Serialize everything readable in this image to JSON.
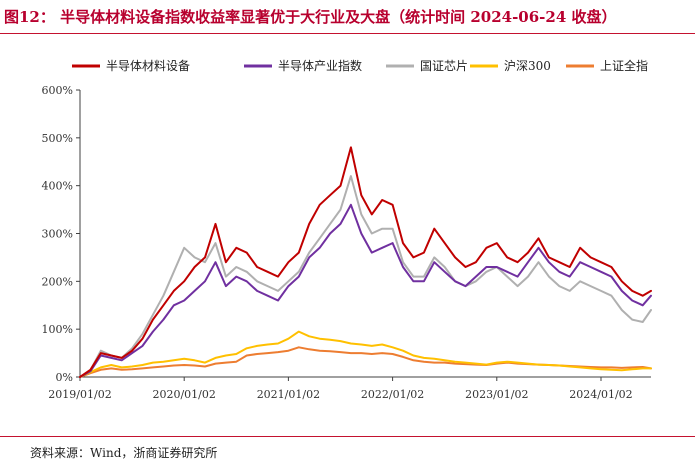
{
  "header": {
    "title": "图12： 半导体材料设备指数收益率显著优于大行业及大盘（统计时间 2024-06-24 收盘）"
  },
  "footer": {
    "source": "资料来源：Wind，浙商证券研究所"
  },
  "chart_data": {
    "type": "line",
    "title": "半导体材料设备指数收益率显著优于大行业及大盘（统计时间 2024-06-24 收盘）",
    "xlabel": "",
    "ylabel": "",
    "y_tick_labels": [
      "0%",
      "100%",
      "200%",
      "300%",
      "400%",
      "500%",
      "600%"
    ],
    "y_tick_values": [
      0,
      100,
      200,
      300,
      400,
      500,
      600
    ],
    "ylim": [
      0,
      600
    ],
    "x_tick_labels": [
      "2019/01/02",
      "2020/01/02",
      "2021/01/02",
      "2022/01/02",
      "2023/01/02",
      "2024/01/02"
    ],
    "x_tick_values": [
      2019.0,
      2020.0,
      2021.0,
      2022.0,
      2023.0,
      2024.0
    ],
    "xlim": [
      2019.0,
      2024.48
    ],
    "grid": false,
    "legend_position": "top",
    "x": [
      2019.0,
      2019.1,
      2019.2,
      2019.3,
      2019.4,
      2019.5,
      2019.6,
      2019.7,
      2019.8,
      2019.9,
      2020.0,
      2020.1,
      2020.2,
      2020.3,
      2020.4,
      2020.5,
      2020.6,
      2020.7,
      2020.8,
      2020.9,
      2021.0,
      2021.1,
      2021.2,
      2021.3,
      2021.4,
      2021.5,
      2021.6,
      2021.7,
      2021.8,
      2021.9,
      2022.0,
      2022.1,
      2022.2,
      2022.3,
      2022.4,
      2022.5,
      2022.6,
      2022.7,
      2022.8,
      2022.9,
      2023.0,
      2023.1,
      2023.2,
      2023.3,
      2023.4,
      2023.5,
      2023.6,
      2023.7,
      2023.8,
      2023.9,
      2024.0,
      2024.1,
      2024.2,
      2024.3,
      2024.4,
      2024.48
    ],
    "series": [
      {
        "name": "半导体材料设备",
        "color": "#c00000",
        "values": [
          0,
          15,
          50,
          45,
          40,
          55,
          80,
          120,
          150,
          180,
          200,
          230,
          250,
          320,
          240,
          270,
          260,
          230,
          220,
          210,
          240,
          260,
          320,
          360,
          380,
          400,
          480,
          380,
          340,
          370,
          360,
          280,
          250,
          260,
          310,
          280,
          250,
          230,
          240,
          270,
          280,
          250,
          240,
          260,
          290,
          250,
          240,
          230,
          270,
          250,
          240,
          230,
          200,
          180,
          170,
          180
        ]
      },
      {
        "name": "半导体产业指数",
        "color": "#7030a0",
        "values": [
          0,
          12,
          45,
          40,
          35,
          50,
          65,
          95,
          120,
          150,
          160,
          180,
          200,
          240,
          190,
          210,
          200,
          180,
          170,
          160,
          190,
          210,
          250,
          270,
          300,
          320,
          360,
          300,
          260,
          270,
          280,
          230,
          200,
          200,
          240,
          220,
          200,
          190,
          210,
          230,
          230,
          220,
          210,
          240,
          270,
          240,
          220,
          210,
          240,
          230,
          220,
          210,
          180,
          160,
          150,
          170
        ]
      },
      {
        "name": "国证芯片",
        "color": "#b0b0b0",
        "values": [
          0,
          14,
          55,
          45,
          40,
          60,
          90,
          130,
          170,
          220,
          270,
          250,
          240,
          280,
          210,
          230,
          220,
          200,
          190,
          180,
          200,
          220,
          260,
          290,
          320,
          350,
          420,
          340,
          300,
          310,
          310,
          240,
          210,
          210,
          250,
          230,
          200,
          190,
          200,
          220,
          230,
          210,
          190,
          210,
          240,
          210,
          190,
          180,
          200,
          190,
          180,
          170,
          140,
          120,
          115,
          140
        ]
      },
      {
        "name": "沪深300",
        "color": "#ffc000",
        "values": [
          0,
          10,
          20,
          25,
          20,
          22,
          25,
          30,
          32,
          35,
          38,
          35,
          30,
          40,
          45,
          48,
          60,
          65,
          68,
          70,
          80,
          95,
          85,
          80,
          78,
          75,
          70,
          68,
          65,
          68,
          62,
          55,
          45,
          40,
          38,
          35,
          32,
          30,
          28,
          26,
          30,
          32,
          30,
          28,
          26,
          25,
          24,
          22,
          20,
          18,
          16,
          15,
          14,
          16,
          18,
          18
        ]
      },
      {
        "name": "上证全指",
        "color": "#ed7d31",
        "values": [
          0,
          8,
          15,
          18,
          15,
          16,
          18,
          20,
          22,
          24,
          25,
          24,
          22,
          28,
          30,
          32,
          45,
          48,
          50,
          52,
          55,
          62,
          58,
          55,
          54,
          52,
          50,
          50,
          48,
          50,
          48,
          42,
          35,
          32,
          30,
          30,
          28,
          27,
          26,
          25,
          28,
          30,
          28,
          27,
          26,
          25,
          24,
          23,
          22,
          21,
          20,
          20,
          19,
          20,
          21,
          18
        ]
      }
    ]
  }
}
